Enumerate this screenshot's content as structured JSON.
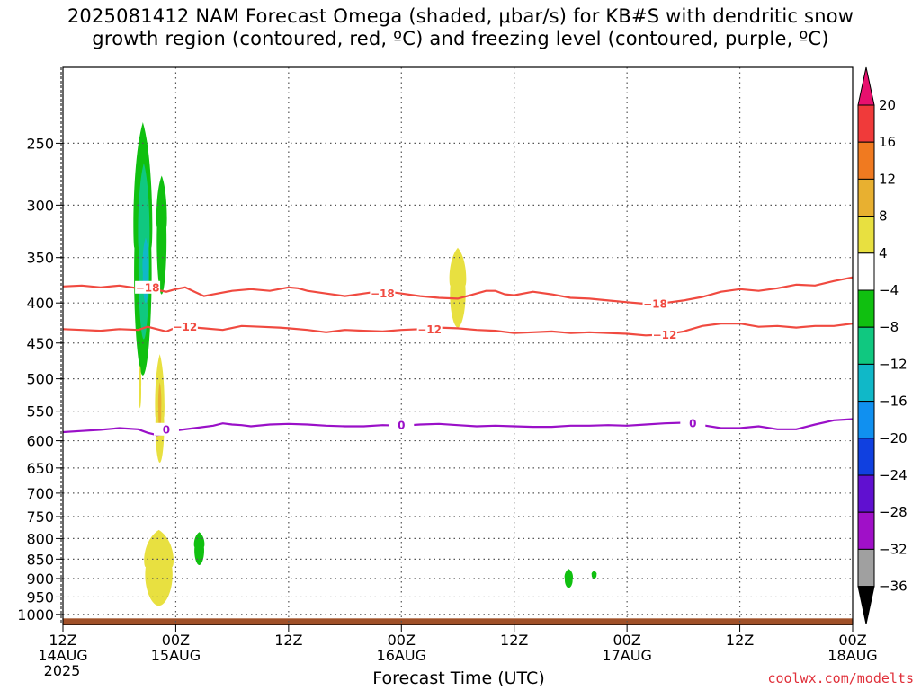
{
  "title": {
    "line1": "2025081412 NAM Forecast Omega (shaded, μbar/s) for KB#S with dendritic snow",
    "line2": "growth region (contoured, red, ºC) and freezing level (contoured, purple, ºC)"
  },
  "credit": "coolwx.com/modelts",
  "chart_data": {
    "type": "heatmap",
    "title": "2025081412 NAM Forecast Omega (shaded, μbar/s) for KB#S with dendritic snow growth region (contoured, red, ºC) and freezing level (contoured, purple, ºC)",
    "xlabel": "Forecast Time (UTC)",
    "ylabel": "",
    "xlim_hours": [
      0,
      84
    ],
    "ylim_hPa": [
      1030,
      200
    ],
    "y_scale": "log-pressure",
    "grid": true,
    "x_ticks": [
      {
        "hour": 0,
        "lines": [
          "12Z",
          "14AUG",
          "2025"
        ]
      },
      {
        "hour": 12,
        "lines": [
          "00Z",
          "15AUG"
        ]
      },
      {
        "hour": 24,
        "lines": [
          "12Z"
        ]
      },
      {
        "hour": 36,
        "lines": [
          "00Z",
          "16AUG"
        ]
      },
      {
        "hour": 48,
        "lines": [
          "12Z"
        ]
      },
      {
        "hour": 60,
        "lines": [
          "00Z",
          "17AUG"
        ]
      },
      {
        "hour": 72,
        "lines": [
          "12Z"
        ]
      },
      {
        "hour": 84,
        "lines": [
          "00Z",
          "18AUG"
        ]
      }
    ],
    "y_ticks": [
      250,
      300,
      350,
      400,
      450,
      500,
      550,
      600,
      650,
      700,
      750,
      800,
      850,
      900,
      950,
      1000
    ],
    "colorbar": {
      "labels": [
        "20",
        "16",
        "12",
        "8",
        "4",
        "−4",
        "−8",
        "−12",
        "−16",
        "−20",
        "−24",
        "−28",
        "−32",
        "−36"
      ],
      "colors": [
        "#e8106e",
        "#f03a3a",
        "#f07a20",
        "#e8b030",
        "#e8e040",
        "#ffffff",
        "#10c010",
        "#10c880",
        "#10b8c8",
        "#1090f0",
        "#1040e0",
        "#6010d0",
        "#a010c8",
        "#a0a0a0",
        "#000000"
      ]
    },
    "contours": [
      {
        "name": "-18",
        "color": "#f04a40",
        "points": [
          [
            0,
            381
          ],
          [
            2,
            380
          ],
          [
            4,
            382
          ],
          [
            6,
            380
          ],
          [
            8,
            383
          ],
          [
            9,
            377
          ],
          [
            10,
            385
          ],
          [
            11,
            387
          ],
          [
            12,
            384
          ],
          [
            13,
            382
          ],
          [
            14,
            387
          ],
          [
            15,
            392
          ],
          [
            16,
            390
          ],
          [
            18,
            386
          ],
          [
            20,
            384
          ],
          [
            22,
            386
          ],
          [
            24,
            382
          ],
          [
            25,
            383
          ],
          [
            26,
            386
          ],
          [
            28,
            389
          ],
          [
            30,
            392
          ],
          [
            32,
            389
          ],
          [
            34,
            386
          ],
          [
            36,
            389
          ],
          [
            38,
            392
          ],
          [
            40,
            394
          ],
          [
            42,
            395
          ],
          [
            43,
            392
          ],
          [
            45,
            386
          ],
          [
            46,
            386
          ],
          [
            47,
            390
          ],
          [
            48,
            391
          ],
          [
            50,
            387
          ],
          [
            52,
            390
          ],
          [
            54,
            394
          ],
          [
            56,
            395
          ],
          [
            58,
            397
          ],
          [
            60,
            399
          ],
          [
            62,
            401
          ],
          [
            64,
            400
          ],
          [
            66,
            397
          ],
          [
            68,
            393
          ],
          [
            70,
            387
          ],
          [
            72,
            384
          ],
          [
            74,
            386
          ],
          [
            76,
            383
          ],
          [
            78,
            379
          ],
          [
            80,
            380
          ],
          [
            82,
            375
          ],
          [
            84,
            371
          ]
        ],
        "labels": [
          [
            9,
            382
          ],
          [
            34,
            389
          ],
          [
            63,
            401
          ]
        ]
      },
      {
        "name": "-12",
        "color": "#f04a40",
        "points": [
          [
            0,
            432
          ],
          [
            2,
            433
          ],
          [
            4,
            434
          ],
          [
            6,
            432
          ],
          [
            8,
            433
          ],
          [
            9,
            429
          ],
          [
            10,
            432
          ],
          [
            11,
            435
          ],
          [
            12,
            430
          ],
          [
            13,
            429
          ],
          [
            15,
            431
          ],
          [
            17,
            433
          ],
          [
            19,
            428
          ],
          [
            21,
            429
          ],
          [
            23,
            430
          ],
          [
            24,
            431
          ],
          [
            26,
            433
          ],
          [
            28,
            436
          ],
          [
            30,
            433
          ],
          [
            32,
            434
          ],
          [
            34,
            435
          ],
          [
            36,
            433
          ],
          [
            38,
            432
          ],
          [
            40,
            430
          ],
          [
            42,
            431
          ],
          [
            44,
            433
          ],
          [
            46,
            434
          ],
          [
            48,
            437
          ],
          [
            50,
            436
          ],
          [
            52,
            435
          ],
          [
            54,
            437
          ],
          [
            56,
            436
          ],
          [
            58,
            437
          ],
          [
            60,
            438
          ],
          [
            62,
            440
          ],
          [
            64,
            439
          ],
          [
            66,
            435
          ],
          [
            68,
            428
          ],
          [
            70,
            425
          ],
          [
            72,
            425
          ],
          [
            74,
            429
          ],
          [
            76,
            428
          ],
          [
            78,
            430
          ],
          [
            80,
            428
          ],
          [
            82,
            428
          ],
          [
            84,
            425
          ]
        ],
        "labels": [
          [
            13,
            429
          ],
          [
            39,
            432
          ],
          [
            64,
            439
          ]
        ]
      },
      {
        "name": "0",
        "color": "#9a10c8",
        "points": [
          [
            0,
            585
          ],
          [
            2,
            583
          ],
          [
            4,
            581
          ],
          [
            6,
            578
          ],
          [
            8,
            580
          ],
          [
            9,
            586
          ],
          [
            10,
            590
          ],
          [
            11,
            587
          ],
          [
            12,
            582
          ],
          [
            14,
            578
          ],
          [
            16,
            574
          ],
          [
            17,
            570
          ],
          [
            18,
            572
          ],
          [
            19,
            573
          ],
          [
            20,
            575
          ],
          [
            22,
            572
          ],
          [
            24,
            571
          ],
          [
            26,
            572
          ],
          [
            28,
            574
          ],
          [
            30,
            575
          ],
          [
            32,
            575
          ],
          [
            34,
            573
          ],
          [
            36,
            574
          ],
          [
            38,
            572
          ],
          [
            40,
            571
          ],
          [
            42,
            573
          ],
          [
            44,
            575
          ],
          [
            46,
            574
          ],
          [
            48,
            575
          ],
          [
            50,
            576
          ],
          [
            52,
            576
          ],
          [
            54,
            574
          ],
          [
            56,
            574
          ],
          [
            58,
            573
          ],
          [
            60,
            574
          ],
          [
            62,
            572
          ],
          [
            64,
            570
          ],
          [
            66,
            569
          ],
          [
            68,
            573
          ],
          [
            70,
            578
          ],
          [
            72,
            578
          ],
          [
            74,
            575
          ],
          [
            76,
            580
          ],
          [
            78,
            580
          ],
          [
            80,
            572
          ],
          [
            82,
            565
          ],
          [
            84,
            563
          ]
        ],
        "labels": [
          [
            11,
            580
          ],
          [
            36,
            573
          ],
          [
            67,
            570
          ]
        ]
      }
    ],
    "omega_regions": [
      {
        "class": "-4 to -8",
        "color": "#10c010",
        "value_ubar_s": -6,
        "center": [
          8.5,
          340
        ],
        "half_width_h": 0.9,
        "p_range": [
          235,
          495
        ]
      },
      {
        "class": "-4 to -8",
        "color": "#10c010",
        "value_ubar_s": -6,
        "center": [
          10.5,
          320
        ],
        "half_width_h": 0.5,
        "p_range": [
          275,
          390
        ]
      },
      {
        "class": "-8 to -12",
        "color": "#10c880",
        "value_ubar_s": -10,
        "center": [
          8.6,
          340
        ],
        "half_width_h": 0.55,
        "p_range": [
          265,
          445
        ]
      },
      {
        "class": "-12 to -16",
        "color": "#10b8c8",
        "value_ubar_s": -14,
        "center": [
          8.8,
          365
        ],
        "half_width_h": 0.3,
        "p_range": [
          330,
          400
        ]
      },
      {
        "class": "4 to 8",
        "color": "#e8e040",
        "value_ubar_s": 6,
        "center": [
          10.3,
          560
        ],
        "half_width_h": 0.45,
        "p_range": [
          465,
          640
        ]
      },
      {
        "class": "8 to 12",
        "color": "#e8b030",
        "value_ubar_s": 10,
        "center": [
          10.3,
          545
        ],
        "half_width_h": 0.15,
        "p_range": [
          505,
          580
        ]
      },
      {
        "class": "4 to 8",
        "color": "#e8e040",
        "value_ubar_s": 6,
        "center": [
          8.2,
          513
        ],
        "half_width_h": 0.12,
        "p_range": [
          480,
          545
        ]
      },
      {
        "class": "4 to 8",
        "color": "#e8e040",
        "value_ubar_s": 6,
        "center": [
          42.0,
          380
        ],
        "half_width_h": 0.8,
        "p_range": [
          340,
          430
        ]
      },
      {
        "class": "4 to 8",
        "color": "#e8e040",
        "value_ubar_s": 6,
        "center": [
          10.2,
          870
        ],
        "half_width_h": 1.4,
        "p_range": [
          780,
          975
        ]
      },
      {
        "class": "-4 to -8",
        "color": "#10c010",
        "value_ubar_s": -6,
        "center": [
          14.5,
          820
        ],
        "half_width_h": 0.5,
        "p_range": [
          785,
          865
        ]
      },
      {
        "class": "-4 to -8",
        "color": "#10c010",
        "value_ubar_s": -6,
        "center": [
          53.8,
          900
        ],
        "half_width_h": 0.4,
        "p_range": [
          875,
          925
        ]
      },
      {
        "class": "-4 to -8",
        "color": "#10c010",
        "value_ubar_s": -6,
        "center": [
          56.5,
          890
        ],
        "half_width_h": 0.25,
        "p_range": [
          880,
          900
        ]
      }
    ],
    "surface": {
      "name": "terrain",
      "color": "#a05028",
      "p_range": [
        1012,
        1030
      ]
    }
  }
}
